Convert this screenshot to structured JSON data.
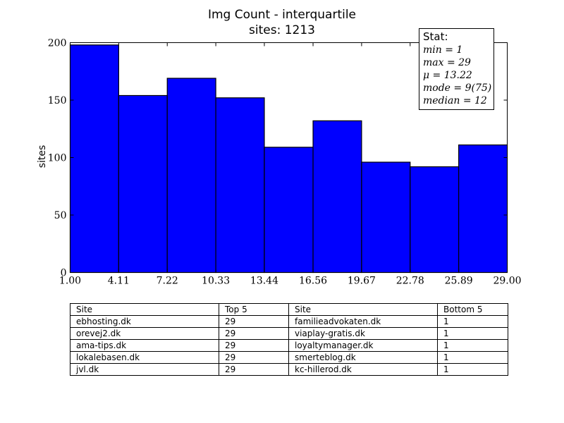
{
  "chart_data": {
    "type": "bar",
    "title": "Img Count - interquartile",
    "subtitle": "sites: 1213",
    "xlabel": "",
    "ylabel": "sites",
    "bin_edges": [
      1.0,
      4.11,
      7.22,
      10.33,
      13.44,
      16.56,
      19.67,
      22.78,
      25.89,
      29.0
    ],
    "x_tick_labels": [
      "1.00",
      "4.11",
      "7.22",
      "10.33",
      "13.44",
      "16.56",
      "19.67",
      "22.78",
      "25.89",
      "29.00"
    ],
    "values": [
      198,
      154,
      169,
      152,
      109,
      132,
      96,
      92,
      111
    ],
    "xlim": [
      1.0,
      29.0
    ],
    "ylim": [
      0,
      200
    ],
    "y_ticks": [
      0,
      50,
      100,
      150,
      200
    ],
    "grid": false,
    "bar_color": "#0000ff",
    "stats_box": {
      "header": "Stat:",
      "lines": [
        "min = 1",
        "max = 29",
        "μ = 13.22",
        "mode = 9(75)",
        "median = 12"
      ]
    }
  },
  "table": {
    "headers": [
      "Site",
      "Top 5",
      "Site",
      "Bottom 5"
    ],
    "rows": [
      [
        "ebhosting.dk",
        "29",
        "familieadvokaten.dk",
        "1"
      ],
      [
        "orevej2.dk",
        "29",
        "viaplay-gratis.dk",
        "1"
      ],
      [
        "ama-tips.dk",
        "29",
        "loyaltymanager.dk",
        "1"
      ],
      [
        "lokalebasen.dk",
        "29",
        "smerteblog.dk",
        "1"
      ],
      [
        "jvl.dk",
        "29",
        "kc-hillerod.dk",
        "1"
      ]
    ]
  }
}
